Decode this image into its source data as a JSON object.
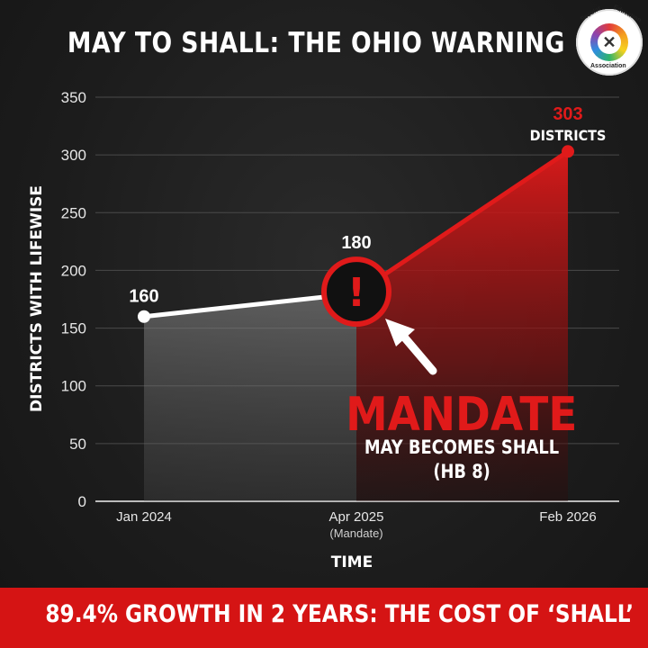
{
  "title": "MAY TO SHALL: THE OHIO WARNING",
  "logo": {
    "text_top_left": "Secular",
    "text_top_right": "Education",
    "text_bottom": "Association",
    "icon": "rainbow-people-icon"
  },
  "chart_data": {
    "type": "area",
    "title": "MAY TO SHALL: THE OHIO WARNING",
    "xlabel": "TIME",
    "ylabel": "DISTRICTS WITH LIFEWISE",
    "ylim": [
      0,
      350
    ],
    "yticks": [
      "0",
      "50",
      "100",
      "150",
      "200",
      "250",
      "300",
      "350"
    ],
    "grid": true,
    "x": [
      "Jan 2024",
      "Apr 2025",
      "Feb 2026"
    ],
    "x_sublabels": [
      "",
      "(Mandate)",
      ""
    ],
    "values": [
      160,
      180,
      303
    ],
    "point_labels": [
      "160",
      "180",
      "303"
    ],
    "last_point_sublabel": "DISTRICTS",
    "annotation": {
      "icon": "exclamation-icon",
      "headline": "MANDATE",
      "line1": "MAY BECOMES SHALL",
      "line2": "(HB 8)"
    },
    "colors": {
      "before": "#ffffff",
      "after": "#e01a1a",
      "accent": "#e01a1a"
    }
  },
  "footer": "89.4% GROWTH IN 2 YEARS: THE COST OF ‘SHALL’"
}
